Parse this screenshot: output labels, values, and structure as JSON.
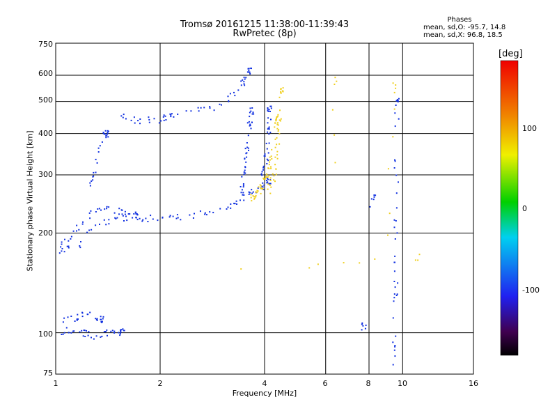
{
  "header": {
    "title_line1": "Tromsø 20161215 11:38:00-11:39:43",
    "title_line2": "RwPretec (8p)"
  },
  "stats": {
    "heading": "Phases",
    "line_o": "mean, sd,O: -95.7, 14.8",
    "line_x": "mean, sd,X:  96.8, 18.5"
  },
  "colorbar": {
    "unit": "[deg]",
    "ticks": [
      "100",
      "0",
      "-100"
    ]
  },
  "chart_data": {
    "type": "scatter",
    "xlabel": "Frequency [MHz]",
    "ylabel": "Stationary phase Virtual Height [km]",
    "x_scale": "log2",
    "y_scale": "log",
    "xlim": [
      1,
      16
    ],
    "ylim": [
      75,
      750
    ],
    "x_ticks": [
      "1",
      "2",
      "4",
      "6",
      "8",
      "10",
      "16"
    ],
    "y_ticks": [
      "750",
      "600",
      "500",
      "400",
      "300",
      "200",
      "100",
      "75"
    ],
    "grid": true,
    "colorbar_range": [
      -180,
      180
    ],
    "series": [
      {
        "name": "O",
        "color": "#1030e0",
        "segments": [
          {
            "x": [
              1.0,
              1.15,
              1.3,
              1.5,
              1.7,
              1.9,
              2.2,
              2.6,
              3.0,
              3.3,
              3.6,
              3.9,
              4.1
            ],
            "y": [
              175,
              185,
              210,
              222,
              225,
              222,
              222,
              230,
              238,
              250,
              262,
              275,
              290
            ]
          },
          {
            "x": [
              1.0,
              1.12,
              1.25,
              1.4,
              1.55,
              1.7
            ],
            "y": [
              180,
              200,
              230,
              240,
              232,
              228
            ]
          },
          {
            "x": [
              1.25,
              1.3,
              1.35,
              1.4
            ],
            "y": [
              280,
              310,
              390,
              400
            ]
          },
          {
            "x": [
              1.55,
              1.7,
              1.9,
              2.1,
              2.4,
              2.8,
              3.2,
              3.5,
              3.6
            ],
            "y": [
              450,
              440,
              440,
              450,
              465,
              480,
              520,
              580,
              620
            ]
          },
          {
            "x": [
              3.4,
              3.45,
              3.5,
              3.55,
              3.6,
              3.65
            ],
            "y": [
              260,
              290,
              320,
              360,
              420,
              470
            ]
          },
          {
            "x": [
              3.9,
              4.0,
              4.05,
              4.1,
              4.12
            ],
            "y": [
              300,
              320,
              360,
              420,
              480
            ]
          },
          {
            "x": [
              1.0,
              1.1,
              1.2,
              1.3,
              1.4,
              1.55
            ],
            "y": [
              100,
              102,
              100,
              98,
              100,
              101
            ]
          },
          {
            "x": [
              1.05,
              1.15,
              1.25,
              1.35
            ],
            "y": [
              110,
              112,
              115,
              110
            ]
          },
          {
            "x": [
              9.4,
              9.45,
              9.5,
              9.5,
              9.55,
              9.6
            ],
            "y": [
              80,
              100,
              140,
              200,
              300,
              500
            ]
          },
          {
            "x": [
              8.1,
              8.2
            ],
            "y": [
              240,
              260
            ]
          },
          {
            "x": [
              7.6,
              7.7
            ],
            "y": [
              104,
              105
            ]
          }
        ]
      },
      {
        "name": "X",
        "color": "#f0d020",
        "segments": [
          {
            "x": [
              3.65,
              3.75,
              3.85,
              3.95,
              4.05,
              4.15,
              4.25,
              4.35
            ],
            "y": [
              255,
              262,
              270,
              285,
              300,
              330,
              380,
              450
            ]
          },
          {
            "x": [
              4.1,
              4.2,
              4.3,
              4.35,
              4.4,
              4.45
            ],
            "y": [
              270,
              290,
              320,
              380,
              440,
              540
            ]
          },
          {
            "x": [
              6.3,
              6.35
            ],
            "y": [
              300,
              580
            ]
          },
          {
            "x": [
              9.0,
              9.2,
              9.4
            ],
            "y": [
              160,
              330,
              560
            ]
          },
          {
            "x": [
              2.8,
              6.3,
              11.0
            ],
            "y": [
              160,
              160,
              170
            ]
          }
        ]
      }
    ]
  }
}
